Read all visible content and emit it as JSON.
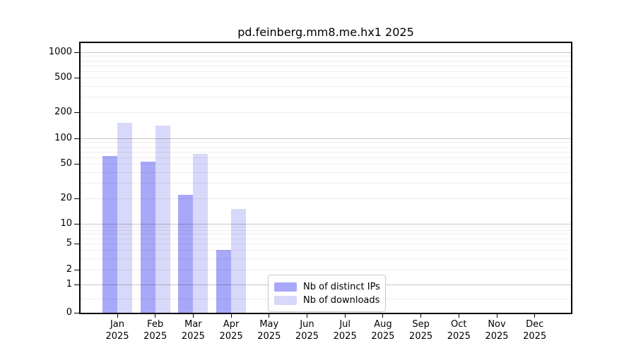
{
  "chart_data": {
    "type": "bar",
    "title": "pd.feinberg.mm8.me.hx1 2025",
    "x_year": "2025",
    "categories": [
      "Jan",
      "Feb",
      "Mar",
      "Apr",
      "May",
      "Jun",
      "Jul",
      "Aug",
      "Sep",
      "Oct",
      "Nov",
      "Dec"
    ],
    "series": [
      {
        "name": "Nb of distinct IPs",
        "color": "#a8a8f8",
        "values": [
          62,
          53,
          22,
          4,
          0,
          0,
          0,
          0,
          0,
          0,
          0,
          0
        ]
      },
      {
        "name": "Nb of downloads",
        "color": "#d8d8fa",
        "values": [
          150,
          140,
          66,
          15,
          0,
          0,
          0,
          0,
          0,
          0,
          0,
          0
        ]
      }
    ],
    "yscale": "symlog",
    "yticks": [
      0,
      1,
      2,
      5,
      10,
      20,
      50,
      100,
      200,
      500,
      1000
    ],
    "ylim": [
      0,
      1400
    ],
    "grid": true,
    "legend_position": "inside-bottom-center",
    "colors": {
      "major_grid": "#c6c6c6",
      "minor_grid": "#ececec",
      "axis_border": "#000000",
      "background": "#ffffff"
    }
  }
}
